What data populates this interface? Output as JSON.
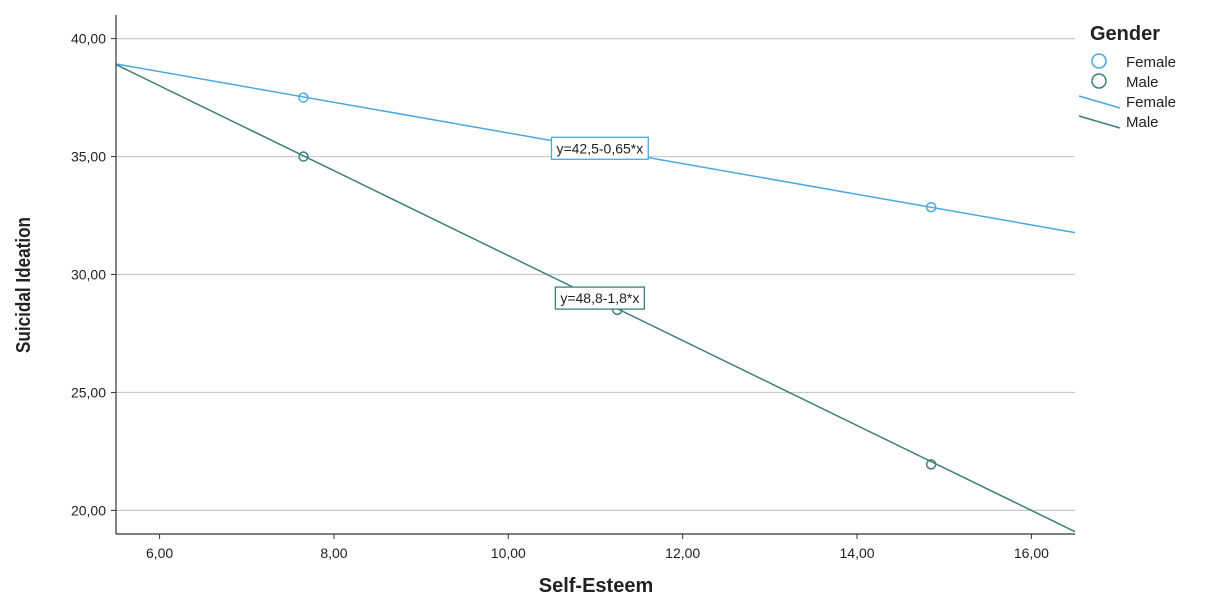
{
  "chart_data": {
    "type": "scatter",
    "xlabel": "Self-Esteem",
    "ylabel": "Suicidal Ideation",
    "xlim": [
      5.5,
      16.5
    ],
    "ylim": [
      19.0,
      41.0
    ],
    "x_ticks": [
      "6,00",
      "8,00",
      "10,00",
      "12,00",
      "14,00",
      "16,00"
    ],
    "y_ticks": [
      "20,00",
      "25,00",
      "30,00",
      "35,00",
      "40,00"
    ],
    "grid": "horizontal",
    "legend": {
      "title": "Gender",
      "position": "top-right",
      "entries": [
        {
          "label": "Female",
          "kind": "marker",
          "color": "#4aa8e0"
        },
        {
          "label": "Male",
          "kind": "marker",
          "color": "#3f7f7a"
        },
        {
          "label": "Female",
          "kind": "line",
          "color": "#4aa8e0"
        },
        {
          "label": "Male",
          "kind": "line",
          "color": "#3f7f7a"
        }
      ]
    },
    "series": [
      {
        "name": "Female",
        "color": "#4aa8e0",
        "points": [
          {
            "x": 7.65,
            "y": 37.5
          },
          {
            "x": 14.85,
            "y": 32.85
          }
        ],
        "fit": {
          "intercept": 42.5,
          "slope": -0.65,
          "x_range": [
            5.5,
            16.5
          ],
          "label": "y=42,5-0,65*x",
          "label_at": {
            "x": 11.05,
            "y": 35.35
          }
        }
      },
      {
        "name": "Male",
        "color": "#3f7f7a",
        "points": [
          {
            "x": 7.65,
            "y": 35.0
          },
          {
            "x": 11.25,
            "y": 28.5
          },
          {
            "x": 14.85,
            "y": 21.95
          }
        ],
        "fit": {
          "intercept": 48.8,
          "slope": -1.8,
          "x_range": [
            5.5,
            16.5
          ],
          "label": "y=48,8-1,8*x",
          "label_at": {
            "x": 11.05,
            "y": 29.0
          }
        }
      }
    ]
  }
}
